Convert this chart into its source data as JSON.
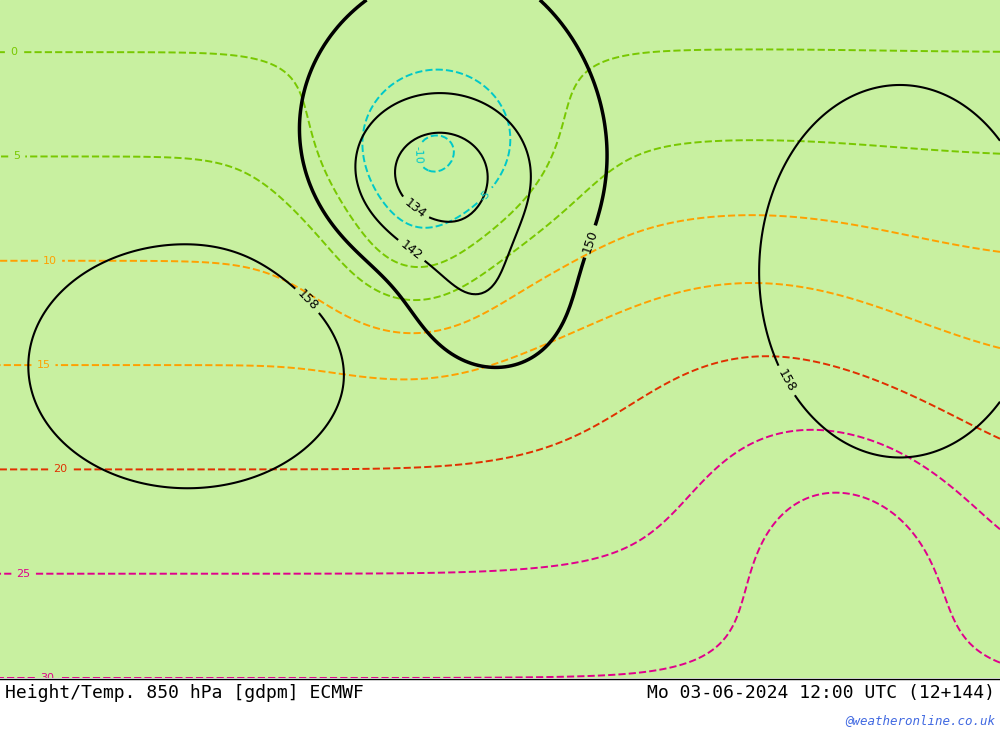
{
  "title_left": "Height/Temp. 850 hPa [gdpm] ECMWF",
  "title_right": "Mo 03-06-2024 12:00 UTC (12+144)",
  "watermark": "@weatheronline.co.uk",
  "land_color": "#c8f0a0",
  "sea_color": "#e0e0e0",
  "lake_color": "#e0e0e0",
  "border_color": "#909090",
  "coast_color": "#909090",
  "title_color": "#000000",
  "watermark_color": "#4169e1",
  "extent": [
    -30,
    50,
    25,
    75
  ],
  "height_contour_color": "#000000",
  "temp_colors": {
    "-10": "#00c8c8",
    "-5": "#00c8c8",
    "0": "#78c800",
    "5": "#78c800",
    "10": "#ffa000",
    "15": "#ffa000",
    "20": "#e03000",
    "25": "#e0008c",
    "30": "#e0008c"
  },
  "font_size_title": 13,
  "font_size_watermark": 9
}
